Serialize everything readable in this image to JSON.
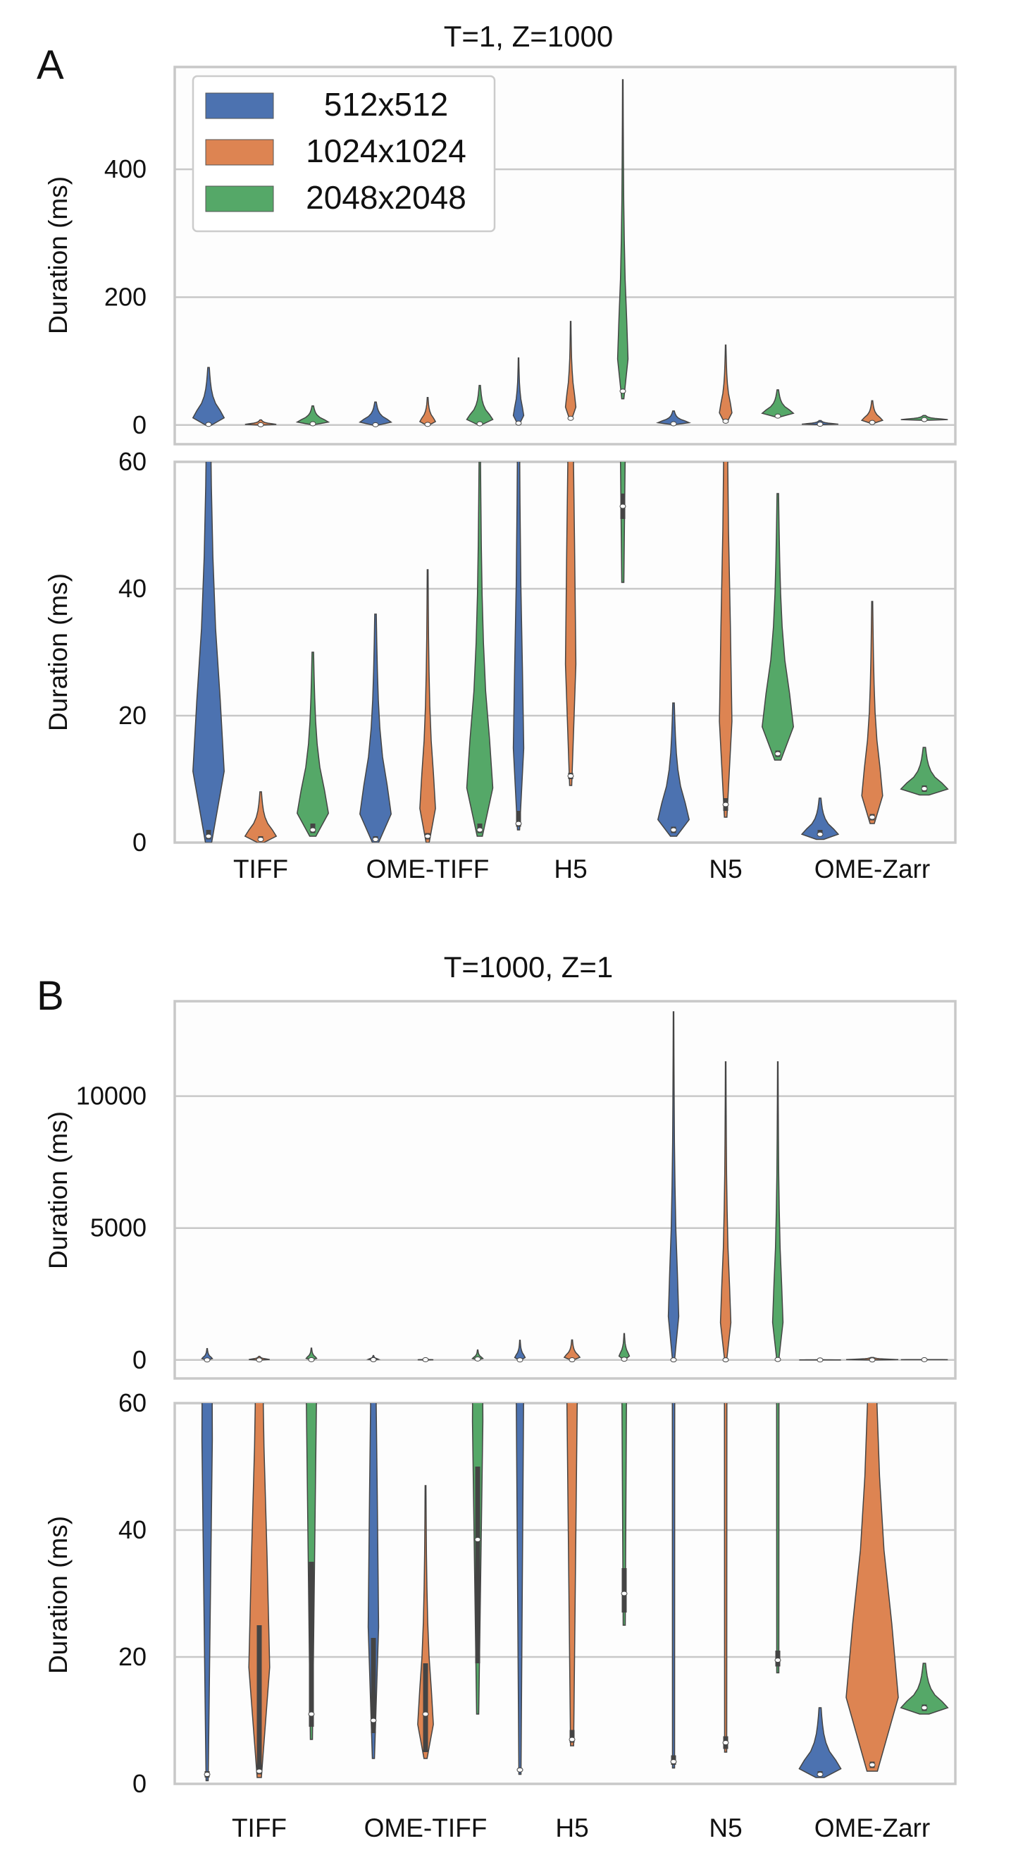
{
  "chart_data": [
    {
      "type": "violin",
      "panel": "A",
      "title": "T=1, Z=1000",
      "categories": [
        "TIFF",
        "OME-TIFF",
        "H5",
        "N5",
        "OME-Zarr"
      ],
      "series": [
        {
          "name": "512x512",
          "color": "#4c72b0"
        },
        {
          "name": "1024x1024",
          "color": "#dd8452"
        },
        {
          "name": "2048x2048",
          "color": "#55a868"
        }
      ],
      "subplots": [
        {
          "ylabel": "Duration (ms)",
          "ylim": [
            -30,
            560
          ],
          "yticks": [
            0,
            200,
            400
          ],
          "legend": "top-left",
          "violins": [
            {
              "category": "TIFF",
              "series": "512x512",
              "median": 1,
              "q1": 0.5,
              "q3": 2,
              "min": 0,
              "max": 90,
              "width": 0.3
            },
            {
              "category": "TIFF",
              "series": "1024x1024",
              "median": 0.5,
              "q1": 0.3,
              "q3": 1,
              "min": 0,
              "max": 8,
              "width": 0.3
            },
            {
              "category": "TIFF",
              "series": "2048x2048",
              "median": 2,
              "q1": 1.5,
              "q3": 3,
              "min": 1,
              "max": 30,
              "width": 0.3
            },
            {
              "category": "OME-TIFF",
              "series": "512x512",
              "median": 0.5,
              "q1": 0.3,
              "q3": 1,
              "min": 0,
              "max": 36,
              "width": 0.3
            },
            {
              "category": "OME-TIFF",
              "series": "1024x1024",
              "median": 1,
              "q1": 0.5,
              "q3": 1.5,
              "min": 0,
              "max": 43,
              "width": 0.15
            },
            {
              "category": "OME-TIFF",
              "series": "2048x2048",
              "median": 2,
              "q1": 1.5,
              "q3": 3,
              "min": 1,
              "max": 62,
              "width": 0.25
            },
            {
              "category": "H5",
              "series": "512x512",
              "median": 3,
              "q1": 2.5,
              "q3": 5,
              "min": 2,
              "max": 105,
              "width": 0.1
            },
            {
              "category": "H5",
              "series": "1024x1024",
              "median": 10.5,
              "q1": 10,
              "q3": 11,
              "min": 9,
              "max": 162,
              "width": 0.1
            },
            {
              "category": "H5",
              "series": "2048x2048",
              "median": 53,
              "q1": 51,
              "q3": 55,
              "min": 41,
              "max": 540,
              "width": 0.1
            },
            {
              "category": "N5",
              "series": "512x512",
              "median": 2,
              "q1": 1.5,
              "q3": 2.5,
              "min": 1,
              "max": 22,
              "width": 0.3
            },
            {
              "category": "N5",
              "series": "1024x1024",
              "median": 6,
              "q1": 5,
              "q3": 7,
              "min": 4,
              "max": 125,
              "width": 0.12
            },
            {
              "category": "N5",
              "series": "2048x2048",
              "median": 14,
              "q1": 13.5,
              "q3": 14.5,
              "min": 13,
              "max": 55,
              "width": 0.3
            },
            {
              "category": "OME-Zarr",
              "series": "512x512",
              "median": 1.3,
              "q1": 1,
              "q3": 2,
              "min": 0.5,
              "max": 7,
              "width": 0.35
            },
            {
              "category": "OME-Zarr",
              "series": "1024x1024",
              "median": 4,
              "q1": 3.5,
              "q3": 4.5,
              "min": 3,
              "max": 38,
              "width": 0.2
            },
            {
              "category": "OME-Zarr",
              "series": "2048x2048",
              "median": 8.5,
              "q1": 8,
              "q3": 9,
              "min": 7.5,
              "max": 15,
              "width": 0.45
            }
          ]
        },
        {
          "ylabel": "Duration (ms)",
          "ylim": [
            0,
            60
          ],
          "yticks": [
            0,
            20,
            40,
            60
          ],
          "violins": [
            {
              "category": "TIFF",
              "series": "512x512",
              "median": 1,
              "q1": 0.5,
              "q3": 2,
              "min": 0,
              "max": 90,
              "width": 0.3
            },
            {
              "category": "TIFF",
              "series": "1024x1024",
              "median": 0.5,
              "q1": 0.3,
              "q3": 1,
              "min": 0,
              "max": 8,
              "width": 0.3
            },
            {
              "category": "TIFF",
              "series": "2048x2048",
              "median": 2,
              "q1": 1.5,
              "q3": 3,
              "min": 1,
              "max": 30,
              "width": 0.3
            },
            {
              "category": "OME-TIFF",
              "series": "512x512",
              "median": 0.5,
              "q1": 0.3,
              "q3": 1,
              "min": 0,
              "max": 36,
              "width": 0.3
            },
            {
              "category": "OME-TIFF",
              "series": "1024x1024",
              "median": 1,
              "q1": 0.5,
              "q3": 1.5,
              "min": 0,
              "max": 43,
              "width": 0.15
            },
            {
              "category": "OME-TIFF",
              "series": "2048x2048",
              "median": 2,
              "q1": 1.5,
              "q3": 3,
              "min": 1,
              "max": 62,
              "width": 0.25
            },
            {
              "category": "H5",
              "series": "512x512",
              "median": 3,
              "q1": 2.5,
              "q3": 5,
              "min": 2,
              "max": 105,
              "width": 0.1
            },
            {
              "category": "H5",
              "series": "1024x1024",
              "median": 10.5,
              "q1": 10,
              "q3": 11,
              "min": 9,
              "max": 162,
              "width": 0.1
            },
            {
              "category": "H5",
              "series": "2048x2048",
              "median": 53,
              "q1": 51,
              "q3": 55,
              "min": 41,
              "max": 540,
              "width": 0.1
            },
            {
              "category": "N5",
              "series": "512x512",
              "median": 2,
              "q1": 1.5,
              "q3": 2.5,
              "min": 1,
              "max": 22,
              "width": 0.3
            },
            {
              "category": "N5",
              "series": "1024x1024",
              "median": 6,
              "q1": 5,
              "q3": 7,
              "min": 4,
              "max": 125,
              "width": 0.12
            },
            {
              "category": "N5",
              "series": "2048x2048",
              "median": 14,
              "q1": 13.5,
              "q3": 14.5,
              "min": 13,
              "max": 55,
              "width": 0.3
            },
            {
              "category": "OME-Zarr",
              "series": "512x512",
              "median": 1.3,
              "q1": 1,
              "q3": 2,
              "min": 0.5,
              "max": 7,
              "width": 0.35
            },
            {
              "category": "OME-Zarr",
              "series": "1024x1024",
              "median": 4,
              "q1": 3.5,
              "q3": 4.5,
              "min": 3,
              "max": 38,
              "width": 0.2
            },
            {
              "category": "OME-Zarr",
              "series": "2048x2048",
              "median": 8.5,
              "q1": 8,
              "q3": 9,
              "min": 7.5,
              "max": 15,
              "width": 0.45
            }
          ]
        }
      ]
    },
    {
      "type": "violin",
      "panel": "B",
      "title": "T=1000, Z=1",
      "categories": [
        "TIFF",
        "OME-TIFF",
        "H5",
        "N5",
        "OME-Zarr"
      ],
      "series": [
        {
          "name": "512x512",
          "color": "#4c72b0"
        },
        {
          "name": "1024x1024",
          "color": "#dd8452"
        },
        {
          "name": "2048x2048",
          "color": "#55a868"
        }
      ],
      "subplots": [
        {
          "ylabel": "Duration (ms)",
          "ylim": [
            -700,
            13600
          ],
          "yticks": [
            0,
            5000,
            10000
          ],
          "violins": [
            {
              "category": "TIFF",
              "series": "512x512",
              "median": 1.5,
              "q1": 1,
              "q3": 2,
              "min": 0.5,
              "max": 430,
              "width": 0.1
            },
            {
              "category": "TIFF",
              "series": "1024x1024",
              "median": 2,
              "q1": 1.5,
              "q3": 25,
              "min": 1,
              "max": 140,
              "width": 0.2
            },
            {
              "category": "TIFF",
              "series": "2048x2048",
              "median": 11,
              "q1": 9,
              "q3": 35,
              "min": 7,
              "max": 450,
              "width": 0.1
            },
            {
              "category": "OME-TIFF",
              "series": "512x512",
              "median": 10,
              "q1": 8,
              "q3": 23,
              "min": 4,
              "max": 170,
              "width": 0.1
            },
            {
              "category": "OME-TIFF",
              "series": "1024x1024",
              "median": 11,
              "q1": 5,
              "q3": 19,
              "min": 4,
              "max": 47,
              "width": 0.15
            },
            {
              "category": "OME-TIFF",
              "series": "2048x2048",
              "median": 38.5,
              "q1": 19,
              "q3": 50,
              "min": 11,
              "max": 380,
              "width": 0.1
            },
            {
              "category": "H5",
              "series": "512x512",
              "median": 2.2,
              "q1": 2,
              "q3": 2.5,
              "min": 1.5,
              "max": 750,
              "width": 0.1
            },
            {
              "category": "H5",
              "series": "1024x1024",
              "median": 7,
              "q1": 6.5,
              "q3": 8.5,
              "min": 6,
              "max": 760,
              "width": 0.15
            },
            {
              "category": "H5",
              "series": "2048x2048",
              "median": 30,
              "q1": 27,
              "q3": 34,
              "min": 25,
              "max": 1000,
              "width": 0.1
            },
            {
              "category": "N5",
              "series": "512x512",
              "median": 3.5,
              "q1": 3,
              "q3": 4.5,
              "min": 2.5,
              "max": 13200,
              "width": 0.1
            },
            {
              "category": "N5",
              "series": "1024x1024",
              "median": 6.5,
              "q1": 5.5,
              "q3": 7.5,
              "min": 5,
              "max": 11300,
              "width": 0.1
            },
            {
              "category": "N5",
              "series": "2048x2048",
              "median": 19.5,
              "q1": 18.5,
              "q3": 21,
              "min": 17.5,
              "max": 11300,
              "width": 0.1
            },
            {
              "category": "OME-Zarr",
              "series": "512x512",
              "median": 1.5,
              "q1": 1.2,
              "q3": 2,
              "min": 1,
              "max": 12,
              "width": 0.4
            },
            {
              "category": "OME-Zarr",
              "series": "1024x1024",
              "median": 3,
              "q1": 2.5,
              "q3": 3.5,
              "min": 2,
              "max": 95,
              "width": 0.5
            },
            {
              "category": "OME-Zarr",
              "series": "2048x2048",
              "median": 12,
              "q1": 11.5,
              "q3": 12.5,
              "min": 11,
              "max": 19,
              "width": 0.45
            }
          ]
        },
        {
          "ylabel": "Duration (ms)",
          "ylim": [
            0,
            60
          ],
          "yticks": [
            0,
            20,
            40,
            60
          ],
          "violins": [
            {
              "category": "TIFF",
              "series": "512x512",
              "median": 1.5,
              "q1": 1,
              "q3": 2,
              "min": 0.5,
              "max": 430,
              "width": 0.1
            },
            {
              "category": "TIFF",
              "series": "1024x1024",
              "median": 2,
              "q1": 1.5,
              "q3": 25,
              "min": 1,
              "max": 140,
              "width": 0.2
            },
            {
              "category": "TIFF",
              "series": "2048x2048",
              "median": 11,
              "q1": 9,
              "q3": 35,
              "min": 7,
              "max": 450,
              "width": 0.1
            },
            {
              "category": "OME-TIFF",
              "series": "512x512",
              "median": 10,
              "q1": 8,
              "q3": 23,
              "min": 4,
              "max": 170,
              "width": 0.1
            },
            {
              "category": "OME-TIFF",
              "series": "1024x1024",
              "median": 11,
              "q1": 5,
              "q3": 19,
              "min": 4,
              "max": 47,
              "width": 0.15
            },
            {
              "category": "OME-TIFF",
              "series": "2048x2048",
              "median": 38.5,
              "q1": 19,
              "q3": 50,
              "min": 11,
              "max": 380,
              "width": 0.1
            },
            {
              "category": "H5",
              "series": "512x512",
              "median": 2.2,
              "q1": 2,
              "q3": 2.5,
              "min": 1.5,
              "max": 750,
              "width": 0.1
            },
            {
              "category": "H5",
              "series": "1024x1024",
              "median": 7,
              "q1": 6.5,
              "q3": 8.5,
              "min": 6,
              "max": 760,
              "width": 0.15
            },
            {
              "category": "H5",
              "series": "2048x2048",
              "median": 30,
              "q1": 27,
              "q3": 34,
              "min": 25,
              "max": 1000,
              "width": 0.1
            },
            {
              "category": "N5",
              "series": "512x512",
              "median": 3.5,
              "q1": 3,
              "q3": 4.5,
              "min": 2.5,
              "max": 13200,
              "width": 0.1
            },
            {
              "category": "N5",
              "series": "1024x1024",
              "median": 6.5,
              "q1": 5.5,
              "q3": 7.5,
              "min": 5,
              "max": 11300,
              "width": 0.1
            },
            {
              "category": "N5",
              "series": "2048x2048",
              "median": 19.5,
              "q1": 18.5,
              "q3": 21,
              "min": 17.5,
              "max": 11300,
              "width": 0.1
            },
            {
              "category": "OME-Zarr",
              "series": "512x512",
              "median": 1.5,
              "q1": 1.2,
              "q3": 2,
              "min": 1,
              "max": 12,
              "width": 0.4
            },
            {
              "category": "OME-Zarr",
              "series": "1024x1024",
              "median": 3,
              "q1": 2.5,
              "q3": 3.5,
              "min": 2,
              "max": 95,
              "width": 0.5
            },
            {
              "category": "OME-Zarr",
              "series": "2048x2048",
              "median": 12,
              "q1": 11.5,
              "q3": 12.5,
              "min": 11,
              "max": 19,
              "width": 0.45
            }
          ]
        }
      ]
    }
  ]
}
